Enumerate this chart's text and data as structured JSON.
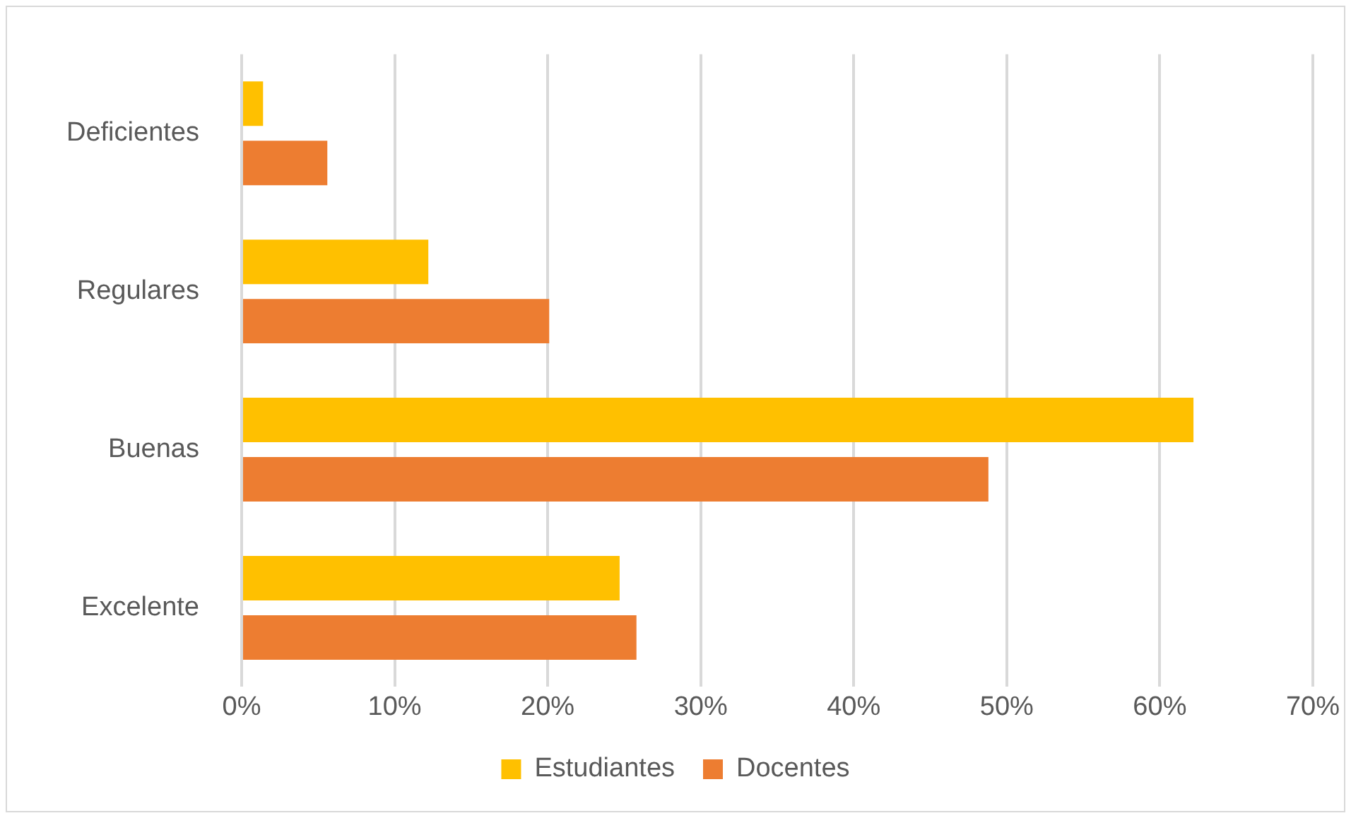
{
  "chart_data": {
    "type": "bar",
    "orientation": "horizontal",
    "categories": [
      "Deficientes",
      "Regulares",
      "Buenas",
      "Excelente"
    ],
    "series": [
      {
        "name": "Estudiantes",
        "color": "#ffc000",
        "values": [
          1.4,
          12.2,
          62.2,
          24.7
        ]
      },
      {
        "name": "Docentes",
        "color": "#ed7d31",
        "values": [
          5.6,
          20.1,
          48.8,
          25.8
        ]
      }
    ],
    "xlim": [
      0,
      70
    ],
    "xticks": [
      {
        "value": 0,
        "label": "0%"
      },
      {
        "value": 10,
        "label": "10%"
      },
      {
        "value": 20,
        "label": "20%"
      },
      {
        "value": 30,
        "label": "30%"
      },
      {
        "value": 40,
        "label": "40%"
      },
      {
        "value": 50,
        "label": "50%"
      },
      {
        "value": 60,
        "label": "60%"
      },
      {
        "value": 70,
        "label": "70%"
      }
    ],
    "grid": "x",
    "legend": "bottom"
  }
}
